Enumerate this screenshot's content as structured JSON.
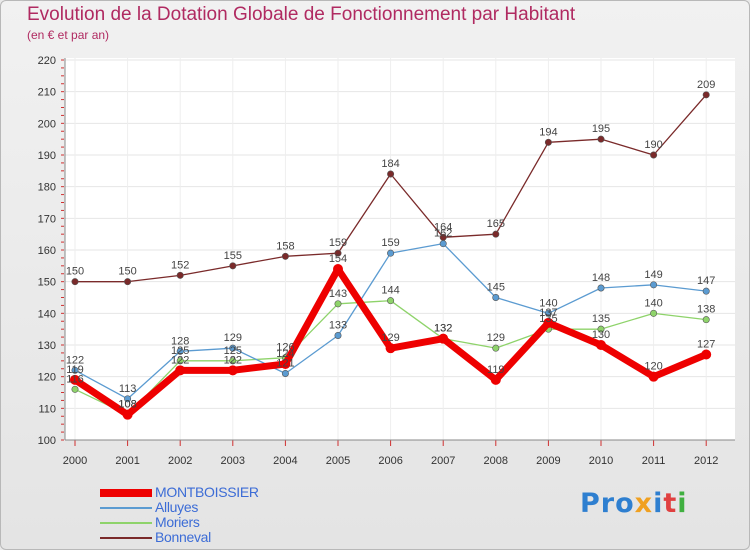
{
  "header": {
    "title": "Evolution de la Dotation Globale de Fonctionnement par Habitant",
    "subtitle": "(en € et par an)"
  },
  "brand": {
    "letters": [
      "Pro",
      "x",
      "i",
      "t",
      "i"
    ],
    "colors": [
      "#2e7fd0",
      "#f0a020",
      "#2e7fd0",
      "#e04040",
      "#40b040"
    ]
  },
  "chart_data": {
    "type": "line",
    "title": "Evolution de la Dotation Globale de Fonctionnement par Habitant",
    "subtitle": "(en € et par an)",
    "xlabel": "",
    "ylabel": "",
    "x": [
      "2000",
      "2001",
      "2002",
      "2003",
      "2004",
      "2005",
      "2006",
      "2007",
      "2008",
      "2009",
      "2010",
      "2011",
      "2012"
    ],
    "ylim": [
      100,
      220
    ],
    "yticks": [
      100,
      110,
      120,
      130,
      140,
      150,
      160,
      170,
      180,
      190,
      200,
      210,
      220
    ],
    "grid": true,
    "legend_position": "bottom-left",
    "series": [
      {
        "name": "MONTBOISSIER",
        "color": "#ee0000",
        "values": [
          119,
          108,
          122,
          122,
          124,
          154,
          129,
          132,
          119,
          137,
          130,
          120,
          127
        ]
      },
      {
        "name": "Alluyes",
        "color": "#5b9bd1",
        "values": [
          122,
          113,
          128,
          129,
          121,
          133,
          159,
          162,
          145,
          140,
          148,
          149,
          147
        ]
      },
      {
        "name": "Moriers",
        "color": "#8ed36a",
        "values": [
          116,
          108,
          125,
          125,
          126,
          143,
          144,
          132,
          129,
          135,
          135,
          140,
          138
        ]
      },
      {
        "name": "Bonneval",
        "color": "#7a2a2a",
        "values": [
          150,
          150,
          152,
          155,
          158,
          159,
          184,
          164,
          165,
          194,
          195,
          190,
          209
        ]
      }
    ]
  }
}
